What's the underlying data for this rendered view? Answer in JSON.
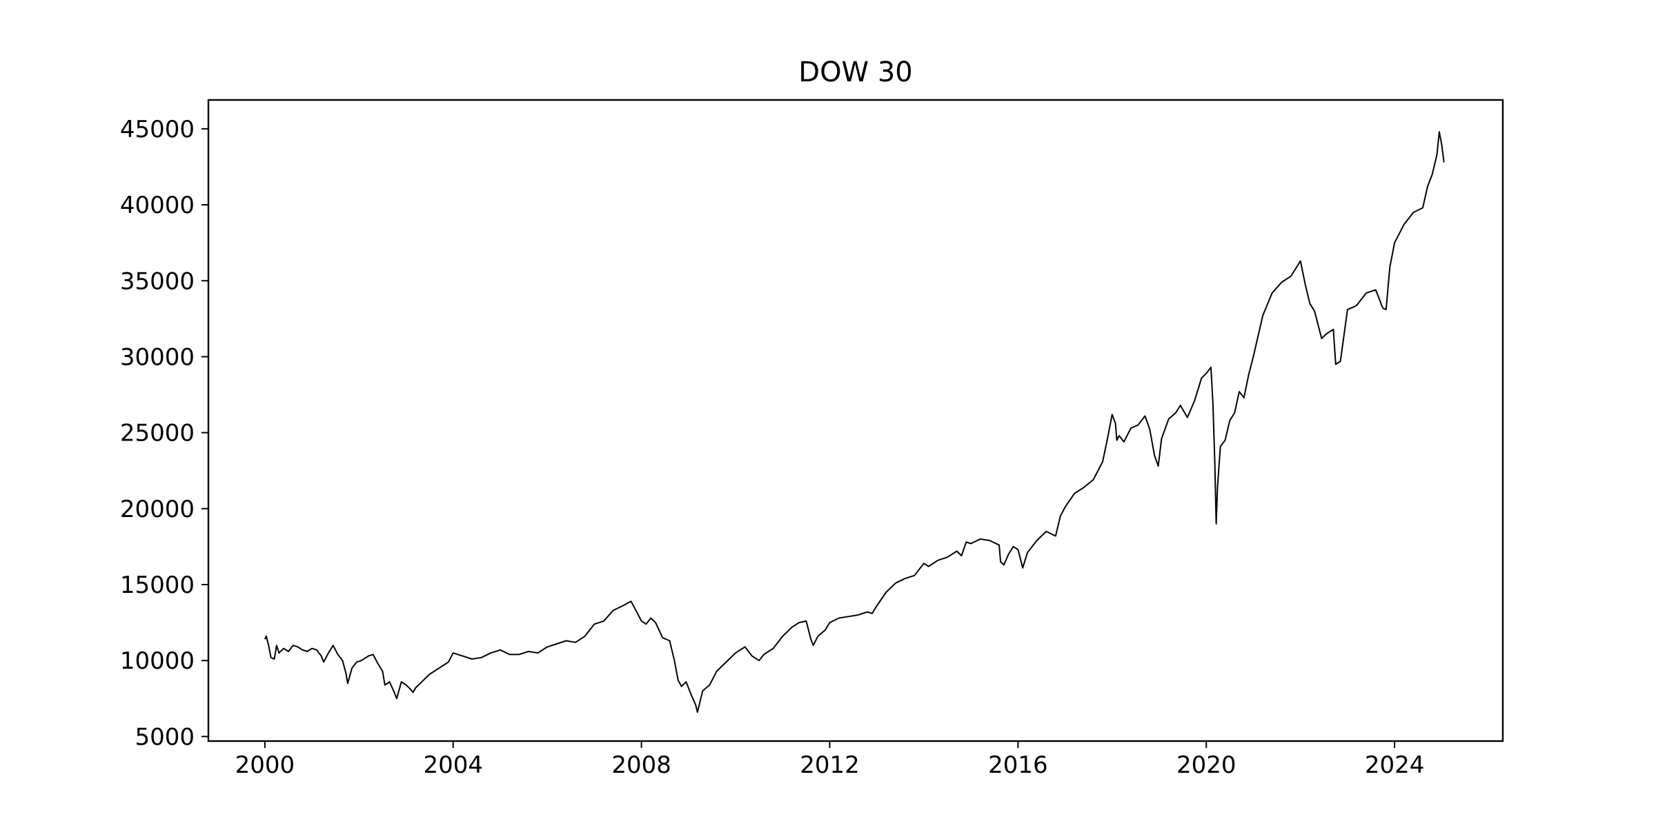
{
  "chart_data": {
    "type": "line",
    "title": "DOW 30",
    "xlabel": "",
    "ylabel": "",
    "x_ticks": [
      "2000",
      "2004",
      "2008",
      "2012",
      "2016",
      "2020",
      "2024"
    ],
    "y_ticks": [
      "5000",
      "10000",
      "15000",
      "20000",
      "25000",
      "30000",
      "35000",
      "40000",
      "45000"
    ],
    "xlim": [
      1998.8,
      2026.3
    ],
    "ylim": [
      4700,
      46900
    ],
    "grid": false,
    "legend": "none",
    "line_color": "#000000",
    "series": [
      {
        "x": [
          2000.0,
          2000.03,
          2000.08,
          2000.13,
          2000.2,
          2000.25,
          2000.3,
          2000.4,
          2000.5,
          2000.6,
          2000.7,
          2000.8,
          2000.9,
          2001.0,
          2001.1,
          2001.2,
          2001.25,
          2001.35,
          2001.45,
          2001.55,
          2001.65,
          2001.72,
          2001.76,
          2001.85,
          2001.95,
          2002.05,
          2002.2,
          2002.3,
          2002.4,
          2002.5,
          2002.55,
          2002.65,
          2002.75,
          2002.8,
          2002.9,
          2003.0,
          2003.1,
          2003.15,
          2003.2,
          2003.3,
          2003.5,
          2003.7,
          2003.9,
          2004.0,
          2004.2,
          2004.4,
          2004.6,
          2004.8,
          2005.0,
          2005.2,
          2005.4,
          2005.6,
          2005.8,
          2006.0,
          2006.2,
          2006.4,
          2006.6,
          2006.8,
          2007.0,
          2007.2,
          2007.4,
          2007.6,
          2007.78,
          2007.9,
          2008.0,
          2008.1,
          2008.2,
          2008.3,
          2008.45,
          2008.6,
          2008.7,
          2008.78,
          2008.85,
          2008.95,
          2009.05,
          2009.15,
          2009.19,
          2009.3,
          2009.45,
          2009.6,
          2009.8,
          2010.0,
          2010.2,
          2010.35,
          2010.5,
          2010.6,
          2010.8,
          2011.0,
          2011.2,
          2011.35,
          2011.5,
          2011.6,
          2011.65,
          2011.75,
          2011.9,
          2012.0,
          2012.2,
          2012.4,
          2012.6,
          2012.8,
          2012.9,
          2013.0,
          2013.2,
          2013.4,
          2013.6,
          2013.8,
          2014.0,
          2014.1,
          2014.3,
          2014.5,
          2014.7,
          2014.8,
          2014.9,
          2015.0,
          2015.2,
          2015.4,
          2015.6,
          2015.63,
          2015.7,
          2015.8,
          2015.9,
          2016.0,
          2016.1,
          2016.2,
          2016.4,
          2016.6,
          2016.8,
          2016.9,
          2017.0,
          2017.2,
          2017.4,
          2017.6,
          2017.8,
          2017.9,
          2018.0,
          2018.07,
          2018.1,
          2018.15,
          2018.25,
          2018.4,
          2018.55,
          2018.7,
          2018.8,
          2018.9,
          2018.98,
          2019.05,
          2019.2,
          2019.35,
          2019.45,
          2019.6,
          2019.75,
          2019.9,
          2020.0,
          2020.1,
          2020.14,
          2020.18,
          2020.21,
          2020.24,
          2020.3,
          2020.4,
          2020.5,
          2020.6,
          2020.7,
          2020.8,
          2020.9,
          2021.0,
          2021.2,
          2021.4,
          2021.6,
          2021.8,
          2021.9,
          2022.0,
          2022.1,
          2022.2,
          2022.3,
          2022.45,
          2022.55,
          2022.7,
          2022.75,
          2022.85,
          2023.0,
          2023.15,
          2023.2,
          2023.4,
          2023.6,
          2023.75,
          2023.82,
          2023.9,
          2024.0,
          2024.2,
          2024.4,
          2024.6,
          2024.7,
          2024.8,
          2024.9,
          2024.95,
          2025.0,
          2025.05
        ],
        "y": [
          11400,
          11600,
          11000,
          10200,
          10100,
          11000,
          10500,
          10800,
          10600,
          11000,
          10900,
          10700,
          10600,
          10800,
          10700,
          10300,
          9900,
          10500,
          11000,
          10400,
          10000,
          9200,
          8500,
          9500,
          9900,
          10000,
          10300,
          10400,
          9800,
          9300,
          8400,
          8600,
          7900,
          7500,
          8600,
          8400,
          8100,
          7900,
          8200,
          8500,
          9100,
          9500,
          9900,
          10500,
          10300,
          10100,
          10200,
          10500,
          10700,
          10400,
          10400,
          10600,
          10500,
          10900,
          11100,
          11300,
          11200,
          11600,
          12400,
          12600,
          13300,
          13600,
          13900,
          13200,
          12600,
          12400,
          12800,
          12500,
          11500,
          11300,
          10000,
          8700,
          8300,
          8600,
          7800,
          7100,
          6600,
          8000,
          8400,
          9300,
          9900,
          10500,
          10900,
          10300,
          10000,
          10400,
          10800,
          11600,
          12200,
          12500,
          12600,
          11400,
          11000,
          11600,
          12000,
          12500,
          12800,
          12900,
          13000,
          13200,
          13100,
          13600,
          14500,
          15100,
          15400,
          15600,
          16400,
          16200,
          16600,
          16800,
          17200,
          16900,
          17800,
          17700,
          18000,
          17900,
          17600,
          16500,
          16300,
          17000,
          17500,
          17300,
          16100,
          17100,
          17900,
          18500,
          18200,
          19500,
          20100,
          21000,
          21400,
          21900,
          23100,
          24600,
          26200,
          25600,
          24500,
          24800,
          24400,
          25300,
          25500,
          26100,
          25200,
          23500,
          22800,
          24600,
          25900,
          26300,
          26800,
          26000,
          27100,
          28600,
          28900,
          29300,
          27000,
          23200,
          19000,
          21500,
          24100,
          24500,
          25800,
          26300,
          27700,
          27300,
          28800,
          30000,
          32700,
          34200,
          34900,
          35300,
          35800,
          36300,
          34800,
          33500,
          33000,
          31200,
          31500,
          31800,
          29500,
          29700,
          33100,
          33300,
          33400,
          34200,
          34400,
          33200,
          33100,
          35900,
          37500,
          38700,
          39500,
          39800,
          41200,
          42000,
          43300,
          44800,
          44000,
          42800
        ]
      }
    ]
  }
}
